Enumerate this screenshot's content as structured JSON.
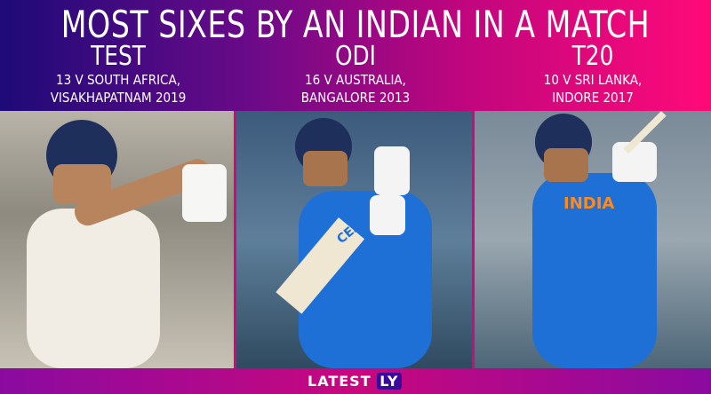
{
  "header": {
    "title": "MOST SIXES BY AN INDIAN IN A MATCH"
  },
  "columns": [
    {
      "format": "TEST",
      "line1": "13 V SOUTH AFRICA,",
      "line2": "VISAKHAPATNAM 2019"
    },
    {
      "format": "ODI",
      "line1": "16 V AUSTRALIA,",
      "line2": "BANGALORE 2013"
    },
    {
      "format": "T20",
      "line1": "10 V SRI LANKA,",
      "line2": "INDORE 2017"
    }
  ],
  "photos": {
    "jersey_text": "INDIA",
    "bat_text": "CEAT"
  },
  "footer": {
    "brand_main": "LATEST",
    "brand_accent": "LY"
  },
  "colors": {
    "gradient_start": "#1d0a78",
    "gradient_end": "#ff0a78",
    "jersey": "#1e6fd6"
  }
}
